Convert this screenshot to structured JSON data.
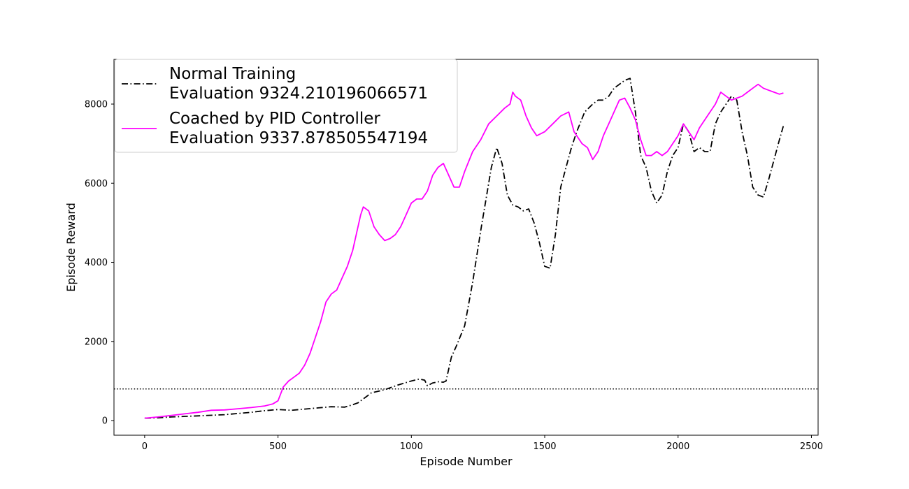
{
  "chart_data": {
    "type": "line",
    "title": "",
    "xlabel": "Episode Number",
    "ylabel": "Episode Reward",
    "xlim": [
      -115,
      2525
    ],
    "ylim": [
      -370,
      9130
    ],
    "xticks": [
      0,
      500,
      1000,
      1500,
      2000,
      2500
    ],
    "yticks": [
      0,
      2000,
      4000,
      6000,
      8000
    ],
    "grid": false,
    "legend_position": "top-left",
    "reference_line": {
      "y": 800,
      "style": "dotted",
      "color": "#000000"
    },
    "series": [
      {
        "name": "Normal Training\nEvaluation 9324.210196066571",
        "color": "#000000",
        "style": "dashdot",
        "x": [
          0,
          50,
          100,
          200,
          300,
          400,
          450,
          500,
          550,
          600,
          650,
          700,
          750,
          780,
          800,
          830,
          850,
          900,
          950,
          1000,
          1030,
          1050,
          1060,
          1080,
          1100,
          1120,
          1130,
          1150,
          1170,
          1200,
          1230,
          1260,
          1280,
          1300,
          1320,
          1340,
          1360,
          1380,
          1400,
          1420,
          1440,
          1460,
          1480,
          1500,
          1520,
          1540,
          1560,
          1580,
          1600,
          1620,
          1650,
          1680,
          1700,
          1720,
          1740,
          1760,
          1780,
          1800,
          1820,
          1840,
          1860,
          1880,
          1900,
          1920,
          1940,
          1960,
          1980,
          2000,
          2020,
          2040,
          2060,
          2080,
          2100,
          2120,
          2140,
          2160,
          2180,
          2200,
          2220,
          2240,
          2260,
          2280,
          2300,
          2320,
          2340,
          2360,
          2380,
          2395
        ],
        "y": [
          60,
          70,
          90,
          120,
          150,
          210,
          250,
          280,
          260,
          290,
          320,
          350,
          340,
          400,
          450,
          600,
          700,
          780,
          900,
          1000,
          1050,
          1020,
          880,
          950,
          980,
          970,
          1000,
          1600,
          1900,
          2400,
          3500,
          4800,
          5600,
          6400,
          6900,
          6500,
          5700,
          5450,
          5400,
          5300,
          5350,
          5000,
          4500,
          3900,
          3850,
          4700,
          5900,
          6400,
          6900,
          7300,
          7800,
          8000,
          8100,
          8100,
          8200,
          8400,
          8500,
          8600,
          8650,
          7800,
          6700,
          6400,
          5800,
          5500,
          5700,
          6300,
          6700,
          6900,
          7500,
          7300,
          6800,
          6900,
          6800,
          6800,
          7500,
          7800,
          8000,
          8200,
          8100,
          7300,
          6700,
          5900,
          5700,
          5650,
          6100,
          6600,
          7100,
          7450
        ]
      },
      {
        "name": "Coached by PID Controller\nEvaluation 9337.878505547194",
        "color": "#ff00ff",
        "style": "solid",
        "x": [
          0,
          50,
          100,
          150,
          200,
          250,
          300,
          350,
          400,
          450,
          480,
          500,
          520,
          540,
          560,
          580,
          600,
          620,
          640,
          660,
          680,
          700,
          720,
          740,
          760,
          780,
          800,
          810,
          820,
          840,
          860,
          880,
          900,
          920,
          940,
          960,
          980,
          1000,
          1020,
          1040,
          1060,
          1080,
          1100,
          1120,
          1140,
          1160,
          1180,
          1200,
          1230,
          1260,
          1290,
          1320,
          1350,
          1370,
          1380,
          1390,
          1410,
          1430,
          1450,
          1470,
          1500,
          1530,
          1560,
          1590,
          1610,
          1640,
          1660,
          1680,
          1700,
          1720,
          1740,
          1760,
          1780,
          1800,
          1820,
          1840,
          1860,
          1880,
          1900,
          1920,
          1940,
          1960,
          1980,
          2000,
          2020,
          2040,
          2060,
          2080,
          2100,
          2120,
          2140,
          2160,
          2180,
          2200,
          2220,
          2240,
          2260,
          2280,
          2300,
          2320,
          2340,
          2360,
          2380,
          2395
        ],
        "y": [
          60,
          90,
          130,
          170,
          210,
          260,
          270,
          300,
          330,
          370,
          420,
          500,
          850,
          1000,
          1100,
          1200,
          1400,
          1700,
          2100,
          2500,
          3000,
          3200,
          3300,
          3600,
          3900,
          4300,
          4900,
          5200,
          5400,
          5300,
          4900,
          4700,
          4550,
          4600,
          4700,
          4900,
          5200,
          5500,
          5600,
          5600,
          5800,
          6200,
          6400,
          6500,
          6200,
          5900,
          5900,
          6300,
          6800,
          7100,
          7500,
          7700,
          7900,
          8000,
          8300,
          8200,
          8100,
          7700,
          7400,
          7200,
          7300,
          7500,
          7700,
          7800,
          7300,
          7000,
          6900,
          6600,
          6800,
          7200,
          7500,
          7800,
          8100,
          8150,
          7900,
          7600,
          7100,
          6700,
          6700,
          6800,
          6700,
          6800,
          7000,
          7200,
          7500,
          7300,
          7100,
          7400,
          7600,
          7800,
          8000,
          8300,
          8200,
          8100,
          8150,
          8200,
          8300,
          8400,
          8500,
          8400,
          8350,
          8300,
          8250,
          8280
        ]
      }
    ]
  }
}
